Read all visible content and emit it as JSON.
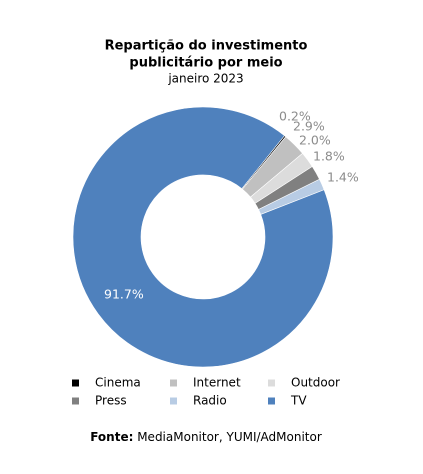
{
  "chart_data": {
    "type": "donut",
    "title": [
      "Repartição do investimento",
      "publicitário por meio"
    ],
    "subtitle": "janeiro 2023",
    "categories": [
      "Cinema",
      "Internet",
      "Outdoor",
      "Press",
      "Radio",
      "TV"
    ],
    "values": [
      0.2,
      2.9,
      2.0,
      1.8,
      1.4,
      91.7
    ],
    "value_labels": [
      "0.2%",
      "2.9%",
      "2.0%",
      "1.8%",
      "1.4%",
      "91.7%"
    ],
    "colors": [
      "#000000",
      "#c0c0c0",
      "#dcdcdc",
      "#808080",
      "#b8cce4",
      "#4f81bd"
    ],
    "source_label": "Fonte:",
    "source": "MediaMonitor, YUMI/AdMonitor"
  }
}
